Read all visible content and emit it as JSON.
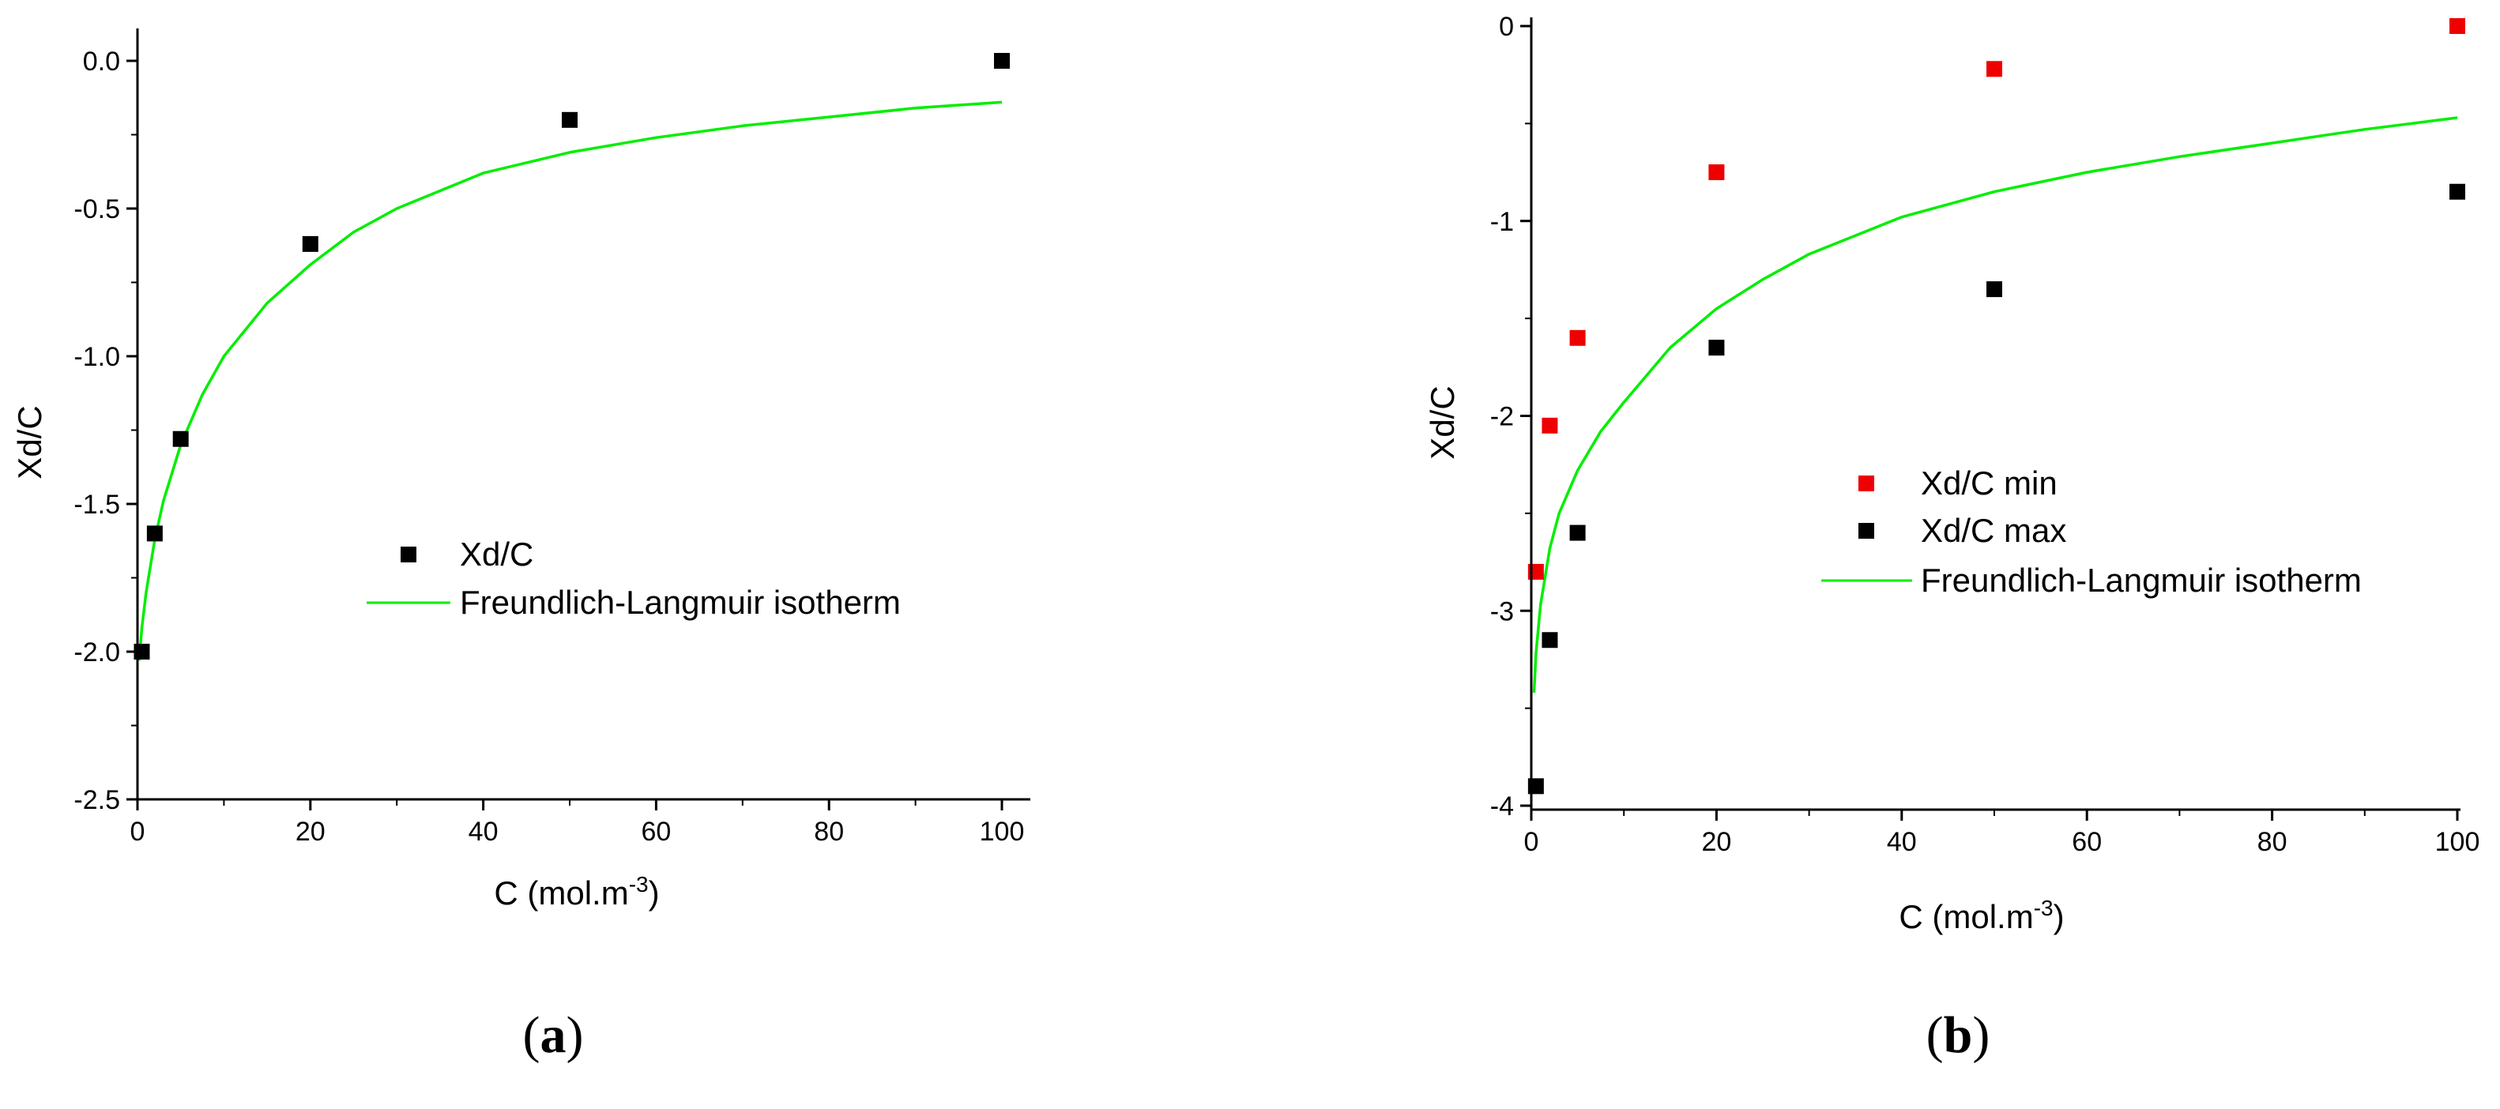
{
  "chart_data": [
    {
      "type": "scatter",
      "panel": "a",
      "xlabel": "C (mol.m",
      "xlabel_sup": "-3",
      "xlabel_close": ")",
      "ylabel": "Xd/C",
      "xlim": [
        0,
        100
      ],
      "ylim": [
        -2.5,
        0.0
      ],
      "x_ticks": [
        0,
        20,
        40,
        60,
        80,
        100
      ],
      "x_tick_labels": [
        "0",
        "20",
        "40",
        "60",
        "80",
        "100"
      ],
      "y_ticks": [
        0.0,
        -0.5,
        -1.0,
        -1.5,
        -2.0,
        -2.5
      ],
      "y_tick_labels": [
        "0.0",
        "-0.5",
        "-1.0",
        "-1.5",
        "-2.0",
        "-2.5"
      ],
      "series": [
        {
          "name": "Xd/C",
          "kind": "points",
          "color": "#000000",
          "x": [
            0.5,
            2,
            5,
            20,
            50,
            100
          ],
          "y": [
            -2.0,
            -1.6,
            -1.28,
            -0.62,
            -0.2,
            0.0
          ]
        },
        {
          "name": "Freundlich-Langmuir isotherm",
          "kind": "line",
          "color": "#00ee00",
          "x": [
            0.2,
            0.5,
            1,
            2,
            3,
            5,
            7.5,
            10,
            15,
            20,
            25,
            30,
            40,
            50,
            60,
            70,
            80,
            90,
            100
          ],
          "y": [
            -2.03,
            -1.92,
            -1.8,
            -1.62,
            -1.49,
            -1.3,
            -1.13,
            -1.0,
            -0.82,
            -0.69,
            -0.58,
            -0.5,
            -0.38,
            -0.31,
            -0.26,
            -0.22,
            -0.19,
            -0.16,
            -0.14
          ]
        }
      ],
      "legend_position": "center",
      "panel_label": "a"
    },
    {
      "type": "scatter",
      "panel": "b",
      "xlabel": "C (mol.m",
      "xlabel_sup": "-3",
      "xlabel_close": ")",
      "ylabel": "Xd/C",
      "xlim": [
        0,
        100
      ],
      "ylim": [
        -4,
        0
      ],
      "x_ticks": [
        0,
        20,
        40,
        60,
        80,
        100
      ],
      "x_tick_labels": [
        "0",
        "20",
        "40",
        "60",
        "80",
        "100"
      ],
      "y_ticks": [
        0,
        -1,
        -2,
        -3,
        -4
      ],
      "y_tick_labels": [
        "0",
        "-1",
        "-2",
        "-3",
        "-4"
      ],
      "series": [
        {
          "name": "Xd/C min",
          "kind": "points",
          "color": "#ee0000",
          "x": [
            0.5,
            2,
            5,
            20,
            50,
            100
          ],
          "y": [
            -2.8,
            -2.05,
            -1.6,
            -0.75,
            -0.22,
            0.0
          ]
        },
        {
          "name": "Xd/C max",
          "kind": "points",
          "color": "#000000",
          "x": [
            0.5,
            2,
            5,
            20,
            50,
            100
          ],
          "y": [
            -3.9,
            -3.15,
            -2.6,
            -1.65,
            -1.35,
            -0.85
          ]
        },
        {
          "name": "Freundlich-Langmuir isotherm",
          "kind": "line",
          "color": "#00ee00",
          "x": [
            0.3,
            0.5,
            1,
            2,
            3,
            5,
            7.5,
            10,
            15,
            20,
            25,
            30,
            40,
            50,
            60,
            70,
            80,
            90,
            100
          ],
          "y": [
            -3.42,
            -3.22,
            -2.97,
            -2.68,
            -2.5,
            -2.28,
            -2.08,
            -1.93,
            -1.65,
            -1.45,
            -1.3,
            -1.17,
            -0.98,
            -0.85,
            -0.75,
            -0.67,
            -0.6,
            -0.53,
            -0.47
          ]
        }
      ],
      "legend_position": "center-right",
      "panel_label": "b"
    }
  ]
}
